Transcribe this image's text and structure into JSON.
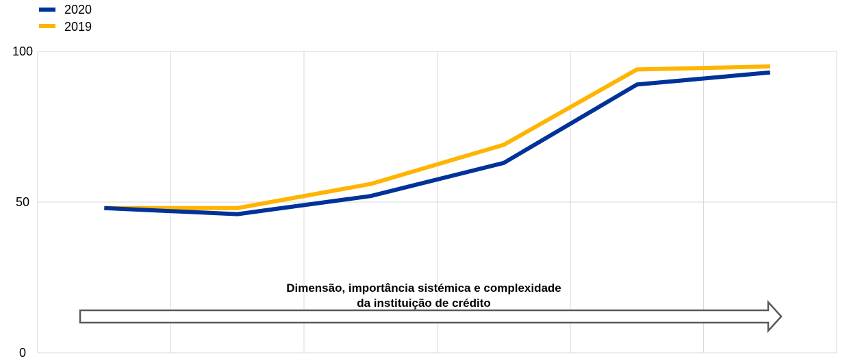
{
  "chart_data": {
    "type": "line",
    "x": [
      1,
      2,
      3,
      4,
      5,
      6
    ],
    "series": [
      {
        "name": "2020",
        "color": "#003299",
        "values": [
          48,
          46,
          52,
          63,
          89,
          93
        ]
      },
      {
        "name": "2019",
        "color": "#FFB400",
        "values": [
          48,
          48,
          56,
          69,
          94,
          95
        ]
      }
    ],
    "ylim": [
      0,
      100
    ],
    "yticks": [
      {
        "value": 0,
        "label": "0"
      },
      {
        "value": 50,
        "label": "50"
      },
      {
        "value": 100,
        "label": "100"
      }
    ],
    "grid": true,
    "legend_position": "top-left",
    "annotation": {
      "line1": "Dimensão, importância sistémica e complexidade",
      "line2": "da instituição de crédito",
      "arrow_direction": "right"
    }
  }
}
